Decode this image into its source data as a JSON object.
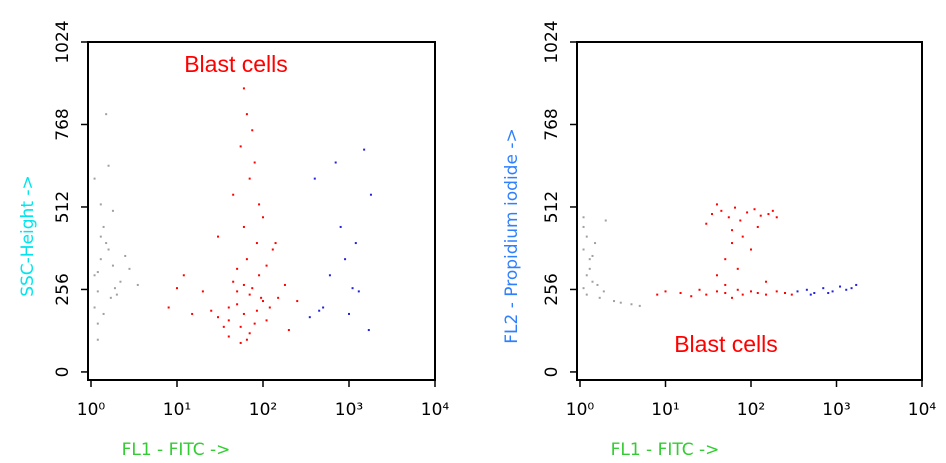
{
  "chart_data": [
    {
      "type": "scatter",
      "xlabel": "FL1 - FITC ->",
      "ylabel": "SSC-Height ->",
      "annotation": "Blast cells",
      "xscale": "log",
      "xlim": [
        1,
        10000
      ],
      "xticks": [
        {
          "value": 1,
          "label": "10⁰"
        },
        {
          "value": 10,
          "label": "10¹"
        },
        {
          "value": 100,
          "label": "10²"
        },
        {
          "value": 1000,
          "label": "10³"
        },
        {
          "value": 10000,
          "label": "10⁴"
        }
      ],
      "ylim": [
        -25,
        1024
      ],
      "yticks": [
        0,
        256,
        512,
        768,
        1024
      ],
      "series": [
        {
          "color": "#a0a0a0",
          "x": [
            1.1,
            1.3,
            1.2,
            1.5,
            1.8,
            1.1,
            2.2,
            1.4,
            1.6,
            1.2,
            2.8,
            1.3,
            1.9,
            1.1,
            1.7,
            3.5,
            1.2,
            1.5,
            2.5,
            1.3,
            1.4,
            1.6,
            2.0,
            1.2,
            1.8
          ],
          "values": [
            300,
            350,
            250,
            400,
            330,
            200,
            280,
            450,
            380,
            150,
            320,
            520,
            260,
            600,
            230,
            270,
            100,
            800,
            360,
            420,
            180,
            640,
            240,
            310,
            500
          ]
        },
        {
          "color": "#ff0000",
          "x": [
            40,
            60,
            80,
            50,
            100,
            70,
            30,
            90,
            55,
            45,
            65,
            120,
            35,
            85,
            75,
            150,
            25,
            110,
            60,
            50,
            40,
            90,
            70,
            20,
            180,
            15,
            200,
            12,
            55,
            80,
            65,
            45,
            100,
            130,
            30,
            60,
            75,
            95,
            50,
            40,
            70,
            85,
            110,
            60,
            8,
            250,
            10,
            140,
            55,
            65
          ],
          "values": [
            200,
            180,
            150,
            250,
            220,
            120,
            170,
            300,
            90,
            280,
            350,
            200,
            140,
            400,
            260,
            230,
            190,
            160,
            450,
            320,
            110,
            520,
            600,
            250,
            270,
            180,
            130,
            300,
            700,
            650,
            800,
            550,
            480,
            380,
            420,
            880,
            750,
            230,
            210,
            160,
            240,
            190,
            330,
            270,
            200,
            220,
            260,
            400,
            140,
            100
          ]
        },
        {
          "color": "#2222dd",
          "x": [
            350,
            500,
            700,
            900,
            1200,
            1500,
            1800,
            400,
            600,
            1000,
            1300,
            800,
            450,
            1700,
            1100
          ],
          "values": [
            170,
            200,
            650,
            350,
            400,
            690,
            550,
            600,
            300,
            180,
            250,
            450,
            190,
            130,
            260
          ]
        }
      ]
    },
    {
      "type": "scatter",
      "xlabel": "FL1 - FITC ->",
      "ylabel": "FL2 - Propidium iodide ->",
      "annotation": "Blast cells",
      "xscale": "log",
      "xlim": [
        1,
        10000
      ],
      "xticks": [
        {
          "value": 1,
          "label": "10⁰"
        },
        {
          "value": 10,
          "label": "10¹"
        },
        {
          "value": 100,
          "label": "10²"
        },
        {
          "value": 1000,
          "label": "10³"
        },
        {
          "value": 10000,
          "label": "10⁴"
        }
      ],
      "ylim": [
        -25,
        1024
      ],
      "yticks": [
        0,
        256,
        512,
        768,
        1024
      ],
      "series": [
        {
          "color": "#a0a0a0",
          "x": [
            1.1,
            1.2,
            1.3,
            1.5,
            1.1,
            2.0,
            1.4,
            1.2,
            1.7,
            2.5,
            3.0,
            4.0,
            5.0,
            1.3,
            1.1,
            1.6,
            1.2,
            1.9,
            1.4,
            1.1
          ],
          "values": [
            260,
            300,
            350,
            400,
            450,
            470,
            280,
            240,
            230,
            220,
            215,
            210,
            205,
            320,
            380,
            270,
            420,
            250,
            360,
            480
          ]
        },
        {
          "color": "#ff0000",
          "x": [
            8,
            10,
            15,
            20,
            25,
            30,
            40,
            50,
            60,
            70,
            80,
            100,
            120,
            150,
            200,
            250,
            300,
            35,
            45,
            55,
            65,
            75,
            90,
            110,
            130,
            160,
            180,
            40,
            50,
            60,
            70,
            80,
            100,
            120,
            150,
            30,
            40,
            200,
            50,
            60
          ],
          "values": [
            240,
            250,
            245,
            235,
            255,
            240,
            250,
            245,
            230,
            255,
            240,
            250,
            245,
            240,
            250,
            245,
            240,
            490,
            500,
            480,
            510,
            470,
            495,
            505,
            485,
            490,
            500,
            300,
            350,
            400,
            320,
            420,
            380,
            450,
            280,
            460,
            520,
            480,
            270,
            440
          ]
        },
        {
          "color": "#2222dd",
          "x": [
            350,
            450,
            550,
            700,
            900,
            1100,
            1300,
            1500,
            1700,
            500,
            800
          ],
          "values": [
            250,
            255,
            245,
            260,
            250,
            265,
            255,
            260,
            270,
            240,
            245
          ]
        }
      ]
    }
  ]
}
